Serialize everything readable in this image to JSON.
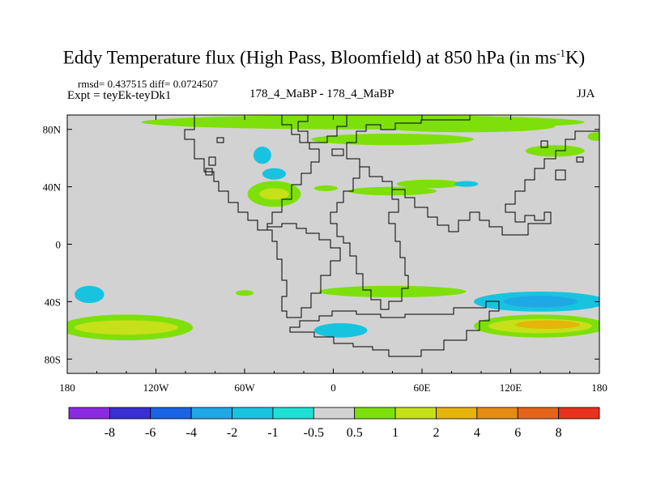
{
  "chart_data": {
    "type": "heatmap",
    "title_main": "Eddy Temperature flux (High Pass, Bloomfield) at 850 hPa (in ms",
    "title_sup": "-1",
    "title_end": "K)",
    "stats": "rmsd= 0.437515  diff= 0.0724507",
    "experiment": "Expt = teyEk-teyDk1",
    "center_label": "178_4_MaBP - 178_4_MaBP",
    "season": "JJA",
    "xlim": [
      -180,
      180
    ],
    "ylim": [
      -90,
      90
    ],
    "x_ticks": [
      {
        "value": -180,
        "label": "180"
      },
      {
        "value": -120,
        "label": "120W"
      },
      {
        "value": -60,
        "label": "60W"
      },
      {
        "value": 0,
        "label": "0"
      },
      {
        "value": 60,
        "label": "60E"
      },
      {
        "value": 120,
        "label": "120E"
      },
      {
        "value": 180,
        "label": "180"
      }
    ],
    "y_ticks": [
      {
        "value": 80,
        "label": "80N"
      },
      {
        "value": 40,
        "label": "40N"
      },
      {
        "value": 0,
        "label": "0"
      },
      {
        "value": -40,
        "label": "40S"
      },
      {
        "value": -80,
        "label": "80S"
      }
    ],
    "colorbar": {
      "levels": [
        "-8",
        "-6",
        "-4",
        "-2",
        "-1",
        "-0.5",
        "0.5",
        "1",
        "2",
        "4",
        "6",
        "8"
      ],
      "colors": [
        "#8a2be2",
        "#3a2fd2",
        "#1c64e6",
        "#1ea8e6",
        "#18c3e0",
        "#1ee0d4",
        "#d2d2d2",
        "#7ee00a",
        "#c6e01a",
        "#e6b40a",
        "#e68c14",
        "#e6641a",
        "#e6321e"
      ]
    },
    "background_color": "#d2d2d2",
    "anomalies": [
      {
        "lon": 20,
        "lat": 85,
        "dlon": 150,
        "dlat": 5,
        "value": 0.8
      },
      {
        "lon": 90,
        "lat": 82,
        "dlon": 60,
        "dlat": 4,
        "value": 0.8
      },
      {
        "lon": 40,
        "lat": 73,
        "dlon": 55,
        "dlat": 4,
        "value": 0.8
      },
      {
        "lon": -48,
        "lat": 62,
        "dlon": 6,
        "dlat": 6,
        "value": -1.5
      },
      {
        "lon": -40,
        "lat": 35,
        "dlon": 18,
        "dlat": 9,
        "value": 0.8
      },
      {
        "lon": -40,
        "lat": 35,
        "dlon": 10,
        "dlat": 4,
        "value": 1.5
      },
      {
        "lon": -40,
        "lat": 49,
        "dlon": 8,
        "dlat": 4,
        "value": -1.5
      },
      {
        "lon": -5,
        "lat": 39,
        "dlon": 8,
        "dlat": 2,
        "value": 0.8
      },
      {
        "lon": 40,
        "lat": 37,
        "dlon": 30,
        "dlat": 3,
        "value": 0.8
      },
      {
        "lon": 65,
        "lat": 42,
        "dlon": 22,
        "dlat": 3,
        "value": 0.8
      },
      {
        "lon": 90,
        "lat": 42,
        "dlon": 8,
        "dlat": 2,
        "value": -1.5
      },
      {
        "lon": 150,
        "lat": 65,
        "dlon": 20,
        "dlat": 4,
        "value": 0.8
      },
      {
        "lon": 178,
        "lat": 75,
        "dlon": 6,
        "dlat": 3,
        "value": 0.8
      },
      {
        "lon": -165,
        "lat": -35,
        "dlon": 10,
        "dlat": 6,
        "value": -1.5
      },
      {
        "lon": -140,
        "lat": -58,
        "dlon": 45,
        "dlat": 9,
        "value": 0.8
      },
      {
        "lon": -140,
        "lat": -58,
        "dlon": 35,
        "dlat": 5,
        "value": 1.5
      },
      {
        "lon": 40,
        "lat": -33,
        "dlon": 50,
        "dlat": 4,
        "value": 0.8
      },
      {
        "lon": -60,
        "lat": -34,
        "dlon": 6,
        "dlat": 2,
        "value": 0.8
      },
      {
        "lon": 5,
        "lat": -60,
        "dlon": 18,
        "dlat": 5,
        "value": -1.5
      },
      {
        "lon": 140,
        "lat": -40,
        "dlon": 45,
        "dlat": 7,
        "value": -1.5
      },
      {
        "lon": 140,
        "lat": -40,
        "dlon": 25,
        "dlat": 4,
        "value": -3
      },
      {
        "lon": 140,
        "lat": -57,
        "dlon": 45,
        "dlat": 8,
        "value": 0.8
      },
      {
        "lon": 140,
        "lat": -57,
        "dlon": 35,
        "dlat": 5,
        "value": 1.5
      },
      {
        "lon": 145,
        "lat": -56,
        "dlon": 22,
        "dlat": 3,
        "value": 3
      }
    ]
  }
}
